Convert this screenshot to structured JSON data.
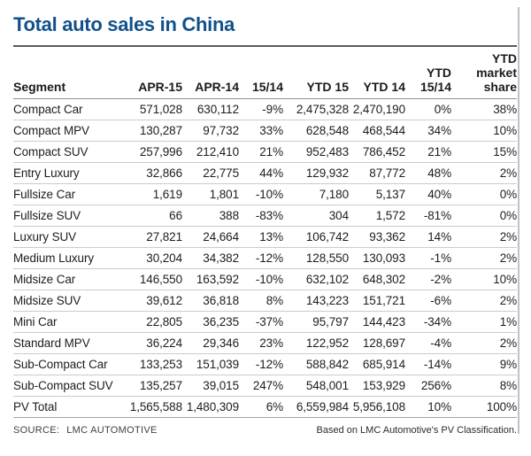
{
  "title": "Total auto sales in China",
  "colors": {
    "title_blue": "#12508c",
    "text": "#1d1d1d",
    "row_separator": "#cbcbcb",
    "header_underline": "#8f8f8f",
    "title_rule": "#5a5a5a",
    "edge_line": "#b9c3cb"
  },
  "chart_data": {
    "type": "table",
    "title": "Total auto sales in China",
    "columns": [
      "Segment",
      "APR-15",
      "APR-14",
      "15/14",
      "YTD 15",
      "YTD 14",
      "YTD 15/14",
      "YTD market share"
    ],
    "header_display": [
      "Segment",
      "APR-15",
      "APR-14",
      "15/14",
      "YTD 15",
      "YTD 14",
      "YTD\n15/14",
      "YTD\nmarket\nshare"
    ],
    "rows": [
      [
        "Compact Car",
        "571,028",
        "630,112",
        "-9%",
        "2,475,328",
        "2,470,190",
        "0%",
        "38%"
      ],
      [
        "Compact MPV",
        "130,287",
        "97,732",
        "33%",
        "628,548",
        "468,544",
        "34%",
        "10%"
      ],
      [
        "Compact SUV",
        "257,996",
        "212,410",
        "21%",
        "952,483",
        "786,452",
        "21%",
        "15%"
      ],
      [
        "Entry Luxury",
        "32,866",
        "22,775",
        "44%",
        "129,932",
        "87,772",
        "48%",
        "2%"
      ],
      [
        "Fullsize Car",
        "1,619",
        "1,801",
        "-10%",
        "7,180",
        "5,137",
        "40%",
        "0%"
      ],
      [
        "Fullsize SUV",
        "66",
        "388",
        "-83%",
        "304",
        "1,572",
        "-81%",
        "0%"
      ],
      [
        "Luxury SUV",
        "27,821",
        "24,664",
        "13%",
        "106,742",
        "93,362",
        "14%",
        "2%"
      ],
      [
        "Medium Luxury",
        "30,204",
        "34,382",
        "-12%",
        "128,550",
        "130,093",
        "-1%",
        "2%"
      ],
      [
        "Midsize Car",
        "146,550",
        "163,592",
        "-10%",
        "632,102",
        "648,302",
        "-2%",
        "10%"
      ],
      [
        "Midsize SUV",
        "39,612",
        "36,818",
        "8%",
        "143,223",
        "151,721",
        "-6%",
        "2%"
      ],
      [
        "Mini Car",
        "22,805",
        "36,235",
        "-37%",
        "95,797",
        "144,423",
        "-34%",
        "1%"
      ],
      [
        "Standard MPV",
        "36,224",
        "29,346",
        "23%",
        "122,952",
        "128,697",
        "-4%",
        "2%"
      ],
      [
        "Sub-Compact Car",
        "133,253",
        "151,039",
        "-12%",
        "588,842",
        "685,914",
        "-14%",
        "9%"
      ],
      [
        "Sub-Compact SUV",
        "135,257",
        "39,015",
        "247%",
        "548,001",
        "153,929",
        "256%",
        "8%"
      ],
      [
        "PV Total",
        "1,565,588",
        "1,480,309",
        "6%",
        "6,559,984",
        "5,956,108",
        "10%",
        "100%"
      ]
    ]
  },
  "footer": {
    "source_label": "SOURCE:",
    "source_value": "LMC AUTOMOTIVE",
    "note": "Based on LMC Automotive's PV Classification."
  }
}
